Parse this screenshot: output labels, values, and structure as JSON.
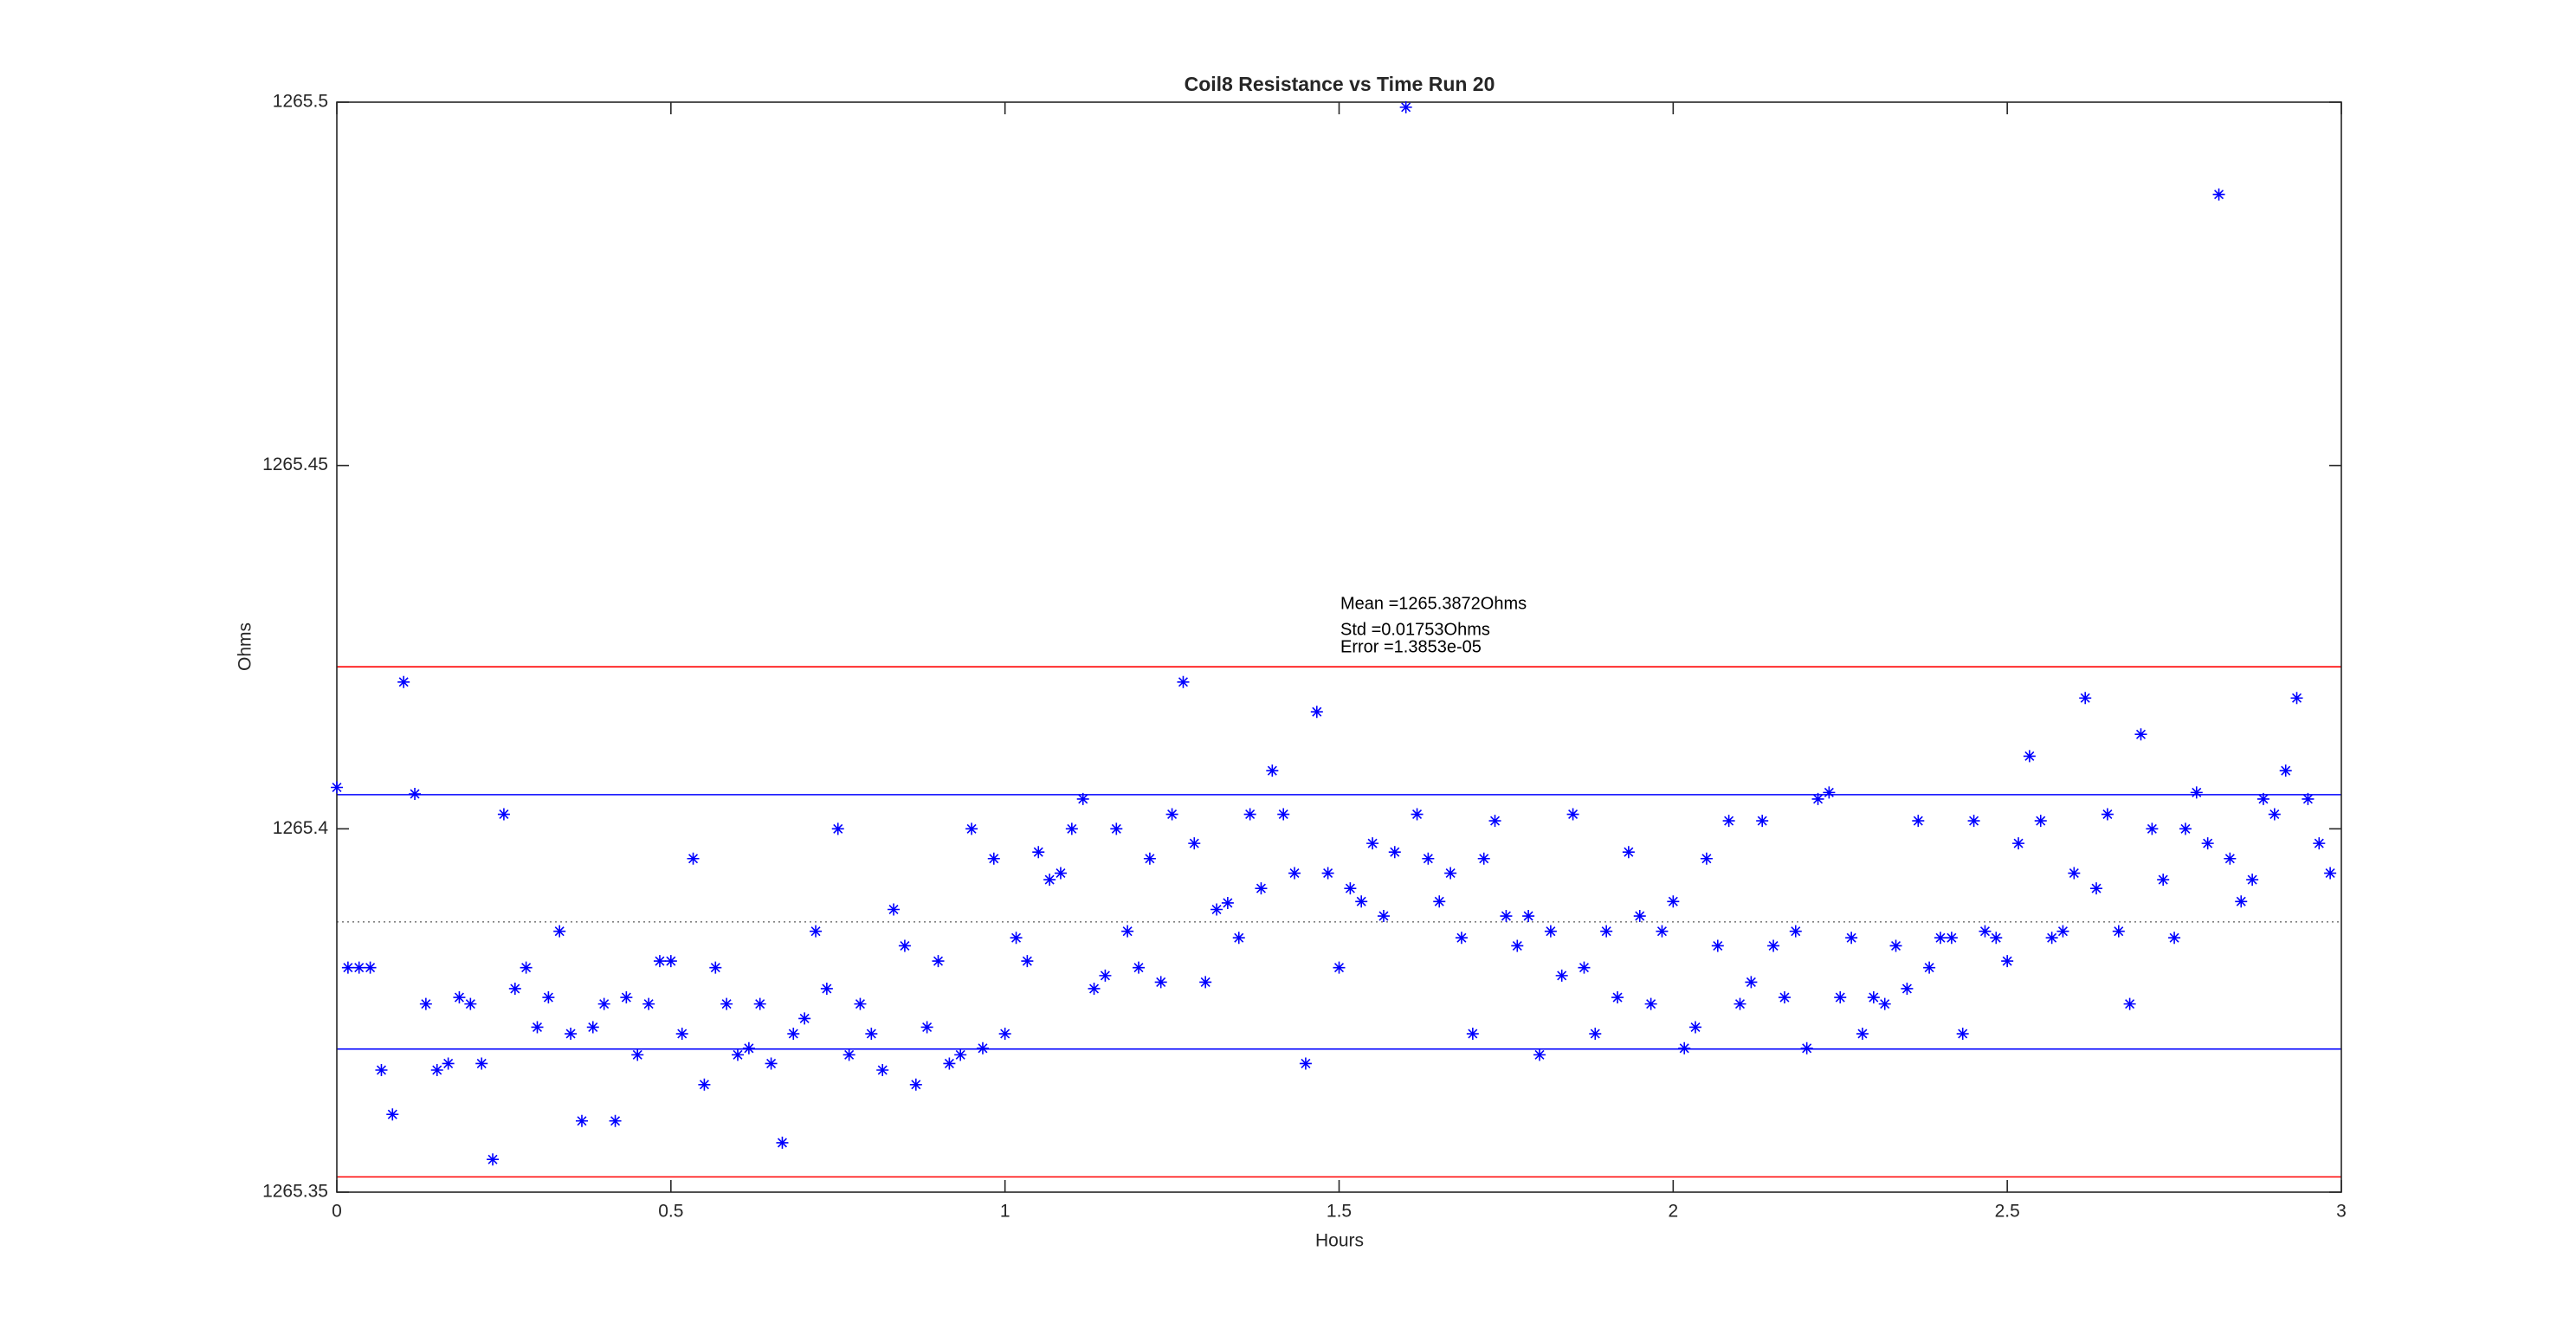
{
  "chart_data": {
    "type": "scatter",
    "title": "Coil8 Resistance vs Time Run 20",
    "x_label": "Hours",
    "y_label": "Ohms",
    "xlim": [
      0,
      3
    ],
    "xticks": [
      0,
      0.5,
      1,
      1.5,
      2,
      2.5,
      3
    ],
    "ylim": [
      1265.35,
      1265.5
    ],
    "yticks": [
      1265.35,
      1265.4,
      1265.45,
      1265.5
    ],
    "grid": false,
    "marker": "asterisk",
    "annotations": [
      "Mean =1265.3872Ohms",
      "Std =0.01753Ohms",
      "Error =1.3853e-05"
    ],
    "reference_lines": [
      {
        "value": 1265.4223,
        "color": "#ff0000",
        "style": "solid"
      },
      {
        "value": 1265.4047,
        "color": "#0000ff",
        "style": "solid"
      },
      {
        "value": 1265.3872,
        "color": "#808080",
        "style": "dotted"
      },
      {
        "value": 1265.3697,
        "color": "#0000ff",
        "style": "solid"
      },
      {
        "value": 1265.3521,
        "color": "#ff0000",
        "style": "solid"
      }
    ],
    "series": [
      {
        "color": "#0000ff",
        "x": [
          0,
          0.0167,
          0.0333,
          0.05,
          0.0667,
          0.0833,
          0.1,
          0.1167,
          0.1333,
          0.15,
          0.1667,
          0.1833,
          0.2,
          0.2167,
          0.2333,
          0.25,
          0.2667,
          0.2833,
          0.3,
          0.3167,
          0.3333,
          0.35,
          0.3667,
          0.3833,
          0.4,
          0.4167,
          0.4333,
          0.45,
          0.4667,
          0.4833,
          0.5,
          0.5167,
          0.5333,
          0.55,
          0.5667,
          0.5833,
          0.6,
          0.6167,
          0.6333,
          0.65,
          0.6667,
          0.6833,
          0.7,
          0.7167,
          0.7333,
          0.75,
          0.7667,
          0.7833,
          0.8,
          0.8167,
          0.8333,
          0.85,
          0.8667,
          0.8833,
          0.9,
          0.9167,
          0.9333,
          0.95,
          0.9667,
          0.9833,
          1,
          1.0167,
          1.0333,
          1.05,
          1.0667,
          1.0833,
          1.1,
          1.1167,
          1.1333,
          1.15,
          1.1667,
          1.1833,
          1.2,
          1.2167,
          1.2333,
          1.25,
          1.2667,
          1.2833,
          1.3,
          1.3167,
          1.3333,
          1.35,
          1.3667,
          1.3833,
          1.4,
          1.4167,
          1.4333,
          1.45,
          1.4667,
          1.4833,
          1.5,
          1.5167,
          1.5333,
          1.55,
          1.5667,
          1.5833,
          1.6,
          1.6167,
          1.6333,
          1.65,
          1.6667,
          1.6833,
          1.7,
          1.7167,
          1.7333,
          1.75,
          1.7667,
          1.7833,
          1.8,
          1.8167,
          1.8333,
          1.85,
          1.8667,
          1.8833,
          1.9,
          1.9167,
          1.9333,
          1.95,
          1.9667,
          1.9833,
          2,
          2.0167,
          2.0333,
          2.05,
          2.0667,
          2.0833,
          2.1,
          2.1167,
          2.1333,
          2.15,
          2.1667,
          2.1833,
          2.2,
          2.2167,
          2.2333,
          2.25,
          2.2667,
          2.2833,
          2.3,
          2.3167,
          2.3333,
          2.35,
          2.3667,
          2.3833,
          2.4,
          2.4167,
          2.4333,
          2.45,
          2.4667,
          2.4833,
          2.5,
          2.5167,
          2.5333,
          2.55,
          2.5667,
          2.5833,
          2.6,
          2.6167,
          2.6333,
          2.65,
          2.6667,
          2.6833,
          2.7,
          2.7167,
          2.7333,
          2.75,
          2.7667,
          2.7833,
          2.8,
          2.8167,
          2.8333,
          2.85,
          2.8667,
          2.8833,
          2.9,
          2.9167,
          2.9333,
          2.95,
          2.9667,
          2.9833
        ],
        "values": [
          1265.4057,
          1265.3809,
          1265.3809,
          1265.3809,
          1265.3668,
          1265.3607,
          1265.4202,
          1265.4048,
          1265.3759,
          1265.3668,
          1265.3677,
          1265.3768,
          1265.3759,
          1265.3677,
          1265.3545,
          1265.402,
          1265.378,
          1265.3809,
          1265.3727,
          1265.3768,
          1265.3859,
          1265.3718,
          1265.3598,
          1265.3727,
          1265.3759,
          1265.3598,
          1265.3768,
          1265.3689,
          1265.3759,
          1265.3818,
          1265.3818,
          1265.3718,
          1265.3959,
          1265.3648,
          1265.3809,
          1265.3759,
          1265.3689,
          1265.3698,
          1265.3759,
          1265.3677,
          1265.3568,
          1265.3718,
          1265.3739,
          1265.3859,
          1265.378,
          1265.4,
          1265.3689,
          1265.3759,
          1265.3718,
          1265.3668,
          1265.3889,
          1265.3839,
          1265.3648,
          1265.3727,
          1265.3818,
          1265.3677,
          1265.3689,
          1265.4,
          1265.3698,
          1265.3959,
          1265.3718,
          1265.385,
          1265.3818,
          1265.3968,
          1265.393,
          1265.3939,
          1265.4,
          1265.4041,
          1265.378,
          1265.3798,
          1265.4,
          1265.3859,
          1265.3809,
          1265.3959,
          1265.3789,
          1265.402,
          1265.4202,
          1265.398,
          1265.3789,
          1265.3889,
          1265.3898,
          1265.385,
          1265.402,
          1265.3918,
          1265.408,
          1265.402,
          1265.3939,
          1265.3677,
          1265.4161,
          1265.3939,
          1265.3809,
          1265.3918,
          1265.39,
          1265.398,
          1265.388,
          1265.3968,
          1265.4993,
          1265.402,
          1265.3959,
          1265.39,
          1265.3939,
          1265.385,
          1265.3718,
          1265.3959,
          1265.4011,
          1265.388,
          1265.3839,
          1265.388,
          1265.3689,
          1265.3859,
          1265.3798,
          1265.402,
          1265.3809,
          1265.3718,
          1265.3859,
          1265.3768,
          1265.3968,
          1265.388,
          1265.3759,
          1265.3859,
          1265.39,
          1265.3698,
          1265.3727,
          1265.3959,
          1265.3839,
          1265.4011,
          1265.3759,
          1265.3789,
          1265.4011,
          1265.3839,
          1265.3768,
          1265.3859,
          1265.3698,
          1265.4041,
          1265.405,
          1265.3768,
          1265.385,
          1265.3718,
          1265.3768,
          1265.3759,
          1265.3839,
          1265.378,
          1265.4011,
          1265.3809,
          1265.385,
          1265.385,
          1265.3718,
          1265.4011,
          1265.3859,
          1265.385,
          1265.3818,
          1265.398,
          1265.41,
          1265.4011,
          1265.385,
          1265.3859,
          1265.3939,
          1265.418,
          1265.3918,
          1265.402,
          1265.3859,
          1265.3759,
          1265.413,
          1265.4,
          1265.393,
          1265.385,
          1265.4,
          1265.405,
          1265.398,
          1265.4873,
          1265.3959,
          1265.39,
          1265.393,
          1265.4041,
          1265.402,
          1265.408,
          1265.418,
          1265.4041,
          1265.398,
          1265.3939
        ]
      }
    ]
  }
}
